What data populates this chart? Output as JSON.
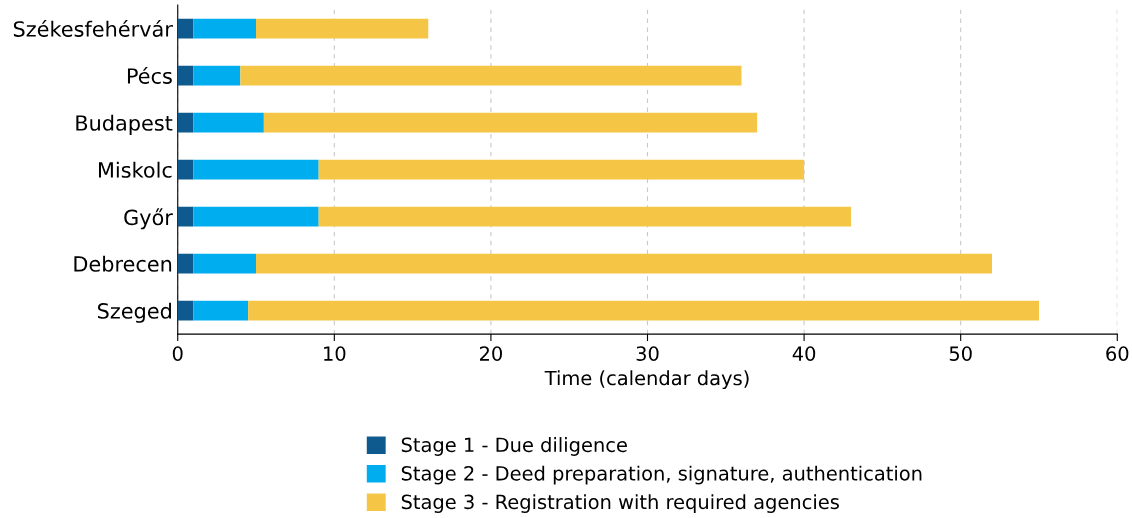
{
  "chart_data": {
    "type": "bar",
    "orientation": "horizontal",
    "stacked": true,
    "xlabel": "Time (calendar days)",
    "categories": [
      "Székesfehérvár",
      "Pécs",
      "Budapest",
      "Miskolc",
      "Győr",
      "Debrecen",
      "Szeged"
    ],
    "series": [
      {
        "name": "Stage 1 - Due diligence",
        "color": "#0e5a8e",
        "values": [
          1,
          1,
          1,
          1,
          1,
          1,
          1
        ]
      },
      {
        "name": "Stage 2 - Deed preparation, signature, authentication",
        "color": "#00aeef",
        "values": [
          4,
          3,
          4.5,
          8,
          8,
          4,
          3.5
        ]
      },
      {
        "name": "Stage 3 - Registration with required agencies",
        "color": "#f5c545",
        "values": [
          11,
          32,
          31.5,
          31,
          34,
          47,
          50.5
        ]
      }
    ],
    "xlim": [
      0,
      60
    ],
    "xticks": [
      0,
      10,
      20,
      30,
      40,
      50,
      60
    ],
    "grid": "x",
    "legend": "bottom"
  }
}
